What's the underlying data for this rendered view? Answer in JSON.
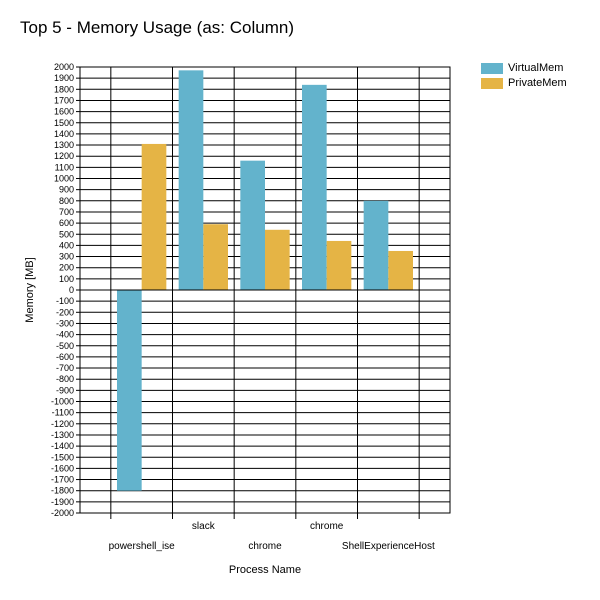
{
  "chart_data": {
    "type": "bar",
    "title": "Top 5 - Memory Usage (as: Column)",
    "xlabel": "Process Name",
    "ylabel": "Memory [MB]",
    "ylim": [
      -2000,
      2000
    ],
    "ytick_step": 100,
    "grid": true,
    "legend_position": "top-right",
    "categories": [
      "powershell_ise",
      "slack",
      "chrome",
      "chrome",
      "ShellExperienceHost"
    ],
    "series": [
      {
        "name": "VirtualMem",
        "color": "#63b3cc",
        "values": [
          -1800,
          1970,
          1160,
          1840,
          800
        ]
      },
      {
        "name": "PrivateMem",
        "color": "#e5b445",
        "values": [
          1310,
          590,
          540,
          440,
          350
        ]
      }
    ]
  }
}
